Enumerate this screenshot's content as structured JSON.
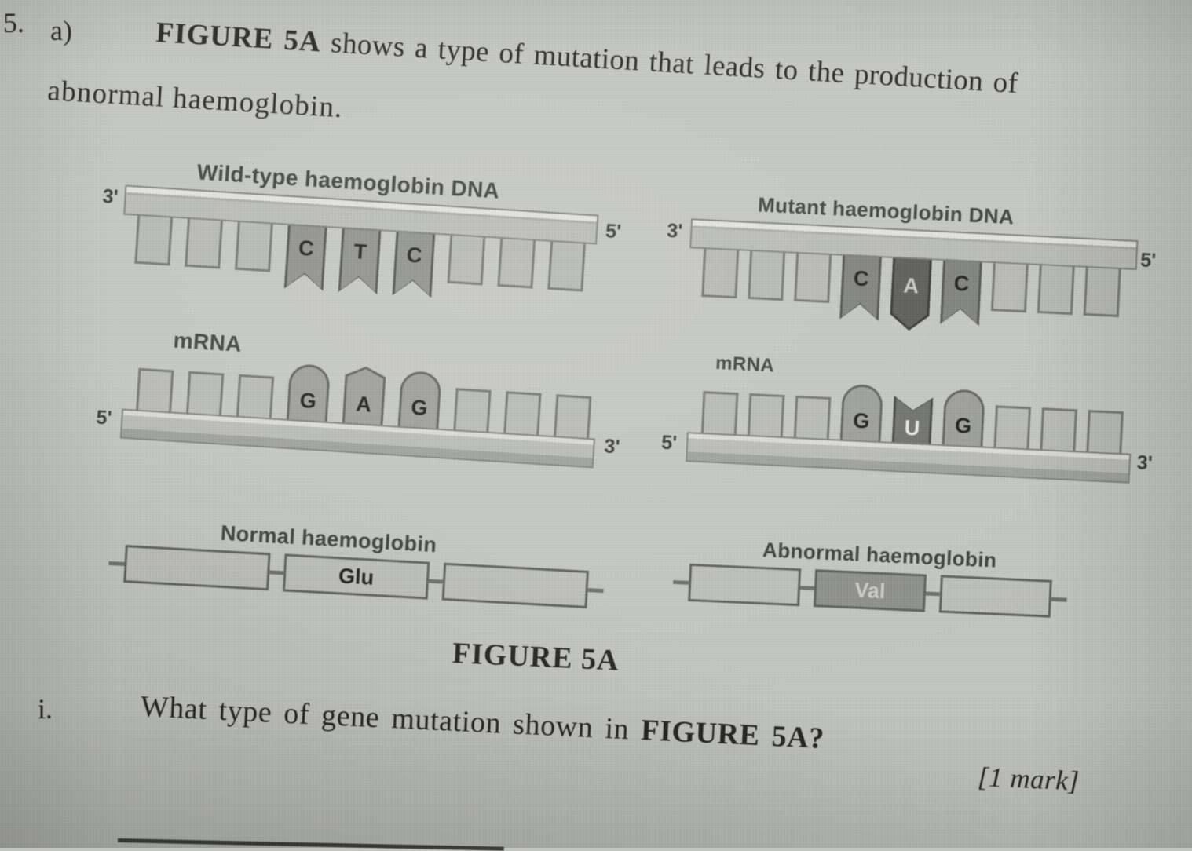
{
  "question": {
    "number": "5.",
    "part": "a)",
    "intro_bold": "FIGURE 5A",
    "intro_rest": " shows a type of mutation that leads to the production of",
    "intro_line2": "abnormal haemoglobin.",
    "sub_number": "i.",
    "sub_text": "What type of gene mutation shown in ",
    "sub_text_bold": "FIGURE 5A?",
    "mark": "[1 mark]"
  },
  "figure": {
    "caption": "FIGURE 5A",
    "wild_dna": {
      "title": "Wild-type haemoglobin DNA",
      "left_end": "3'",
      "right_end": "5'",
      "bases": [
        "C",
        "T",
        "C"
      ]
    },
    "mutant_dna": {
      "title": "Mutant haemoglobin DNA",
      "left_end": "3'",
      "right_end": "5'",
      "bases": [
        "C",
        "A",
        "C"
      ]
    },
    "wild_mrna": {
      "title": "mRNA",
      "left_end": "5'",
      "right_end": "3'",
      "bases": [
        "G",
        "A",
        "G"
      ]
    },
    "mutant_mrna": {
      "title": "mRNA",
      "left_end": "5'",
      "right_end": "3'",
      "bases": [
        "G",
        "U",
        "G"
      ]
    },
    "normal_protein": {
      "title": "Normal haemoglobin",
      "amino_acid": "Glu"
    },
    "abnormal_protein": {
      "title": "Abnormal haemoglobin",
      "amino_acid": "Val"
    }
  },
  "colors": {
    "paper": "#c3c6bf",
    "mutant_base_dark": "#585a52",
    "labeled_base_gray": "#8d9086",
    "ink": "#26271f"
  }
}
